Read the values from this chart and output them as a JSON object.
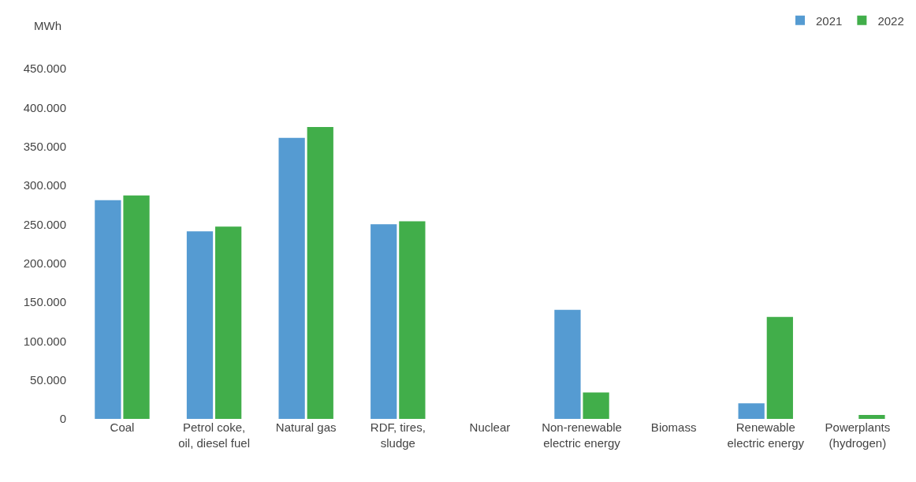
{
  "chart_data": {
    "type": "bar",
    "ylabel": "MWh",
    "categories": [
      "Coal",
      "Petrol coke, oil, diesel fuel",
      "Natural gas",
      "RDF, tires, sludge",
      "Nuclear",
      "Non-renewable electric energy",
      "Biomass",
      "Renewable electric energy",
      "Powerplants (hydrogen)"
    ],
    "series": [
      {
        "name": "2021",
        "color": "#559bd2",
        "values": [
          281000,
          241000,
          361000,
          250000,
          0,
          140000,
          0,
          20000,
          0
        ]
      },
      {
        "name": "2022",
        "color": "#41ae4a",
        "values": [
          287000,
          247000,
          375000,
          254000,
          0,
          34000,
          0,
          131000,
          5000
        ]
      }
    ],
    "ylim": [
      0,
      450000
    ],
    "yticks": [
      {
        "value": 0,
        "label": "0"
      },
      {
        "value": 50000,
        "label": "50.000"
      },
      {
        "value": 100000,
        "label": "100.000"
      },
      {
        "value": 150000,
        "label": "150.000"
      },
      {
        "value": 200000,
        "label": "200.000"
      },
      {
        "value": 250000,
        "label": "250.000"
      },
      {
        "value": 300000,
        "label": "300.000"
      },
      {
        "value": 350000,
        "label": "350.000"
      },
      {
        "value": 400000,
        "label": "400.000"
      },
      {
        "value": 450000,
        "label": "450.000"
      }
    ],
    "grid": false,
    "legend": "top right"
  }
}
